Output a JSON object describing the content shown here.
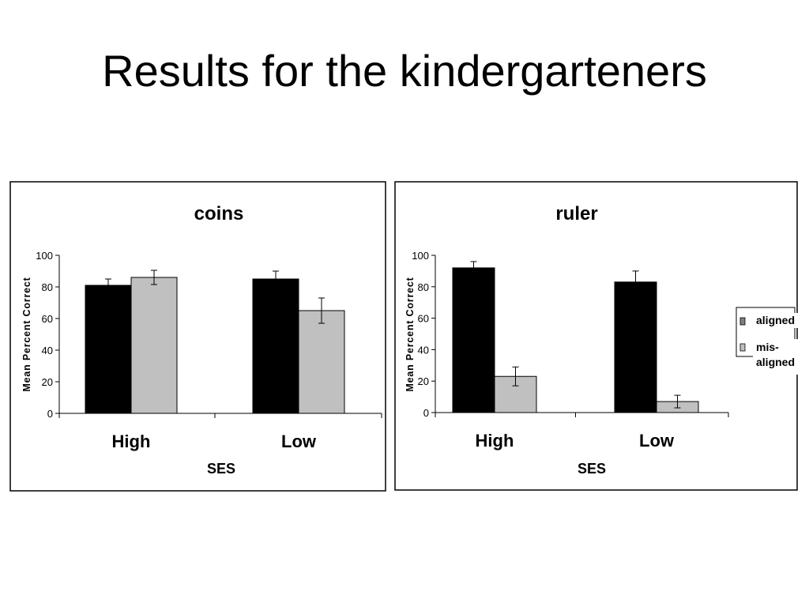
{
  "slide": {
    "title": "Results for the kindergarteners"
  },
  "chart_data": [
    {
      "type": "bar",
      "title": "coins",
      "xlabel": "SES",
      "ylabel": "Mean Percent Correct",
      "ylim": [
        0,
        100
      ],
      "yticks": [
        0,
        20,
        40,
        60,
        80,
        100
      ],
      "categories": [
        "High",
        "Low"
      ],
      "series": [
        {
          "name": "aligned",
          "color": "#000000",
          "values": [
            81,
            85
          ],
          "error": [
            4,
            5
          ]
        },
        {
          "name": "mis-aligned",
          "color": "#c0c0c0",
          "values": [
            86,
            65
          ],
          "error": [
            4.5,
            8
          ]
        }
      ],
      "legend": "none"
    },
    {
      "type": "bar",
      "title": "ruler",
      "xlabel": "SES",
      "ylabel": "Mean Percent Correct",
      "ylim": [
        0,
        100
      ],
      "yticks": [
        0,
        20,
        40,
        60,
        80,
        100
      ],
      "categories": [
        "High",
        "Low"
      ],
      "series": [
        {
          "name": "aligned",
          "color": "#000000",
          "values": [
            92,
            83
          ],
          "error": [
            4,
            7
          ]
        },
        {
          "name": "mis-aligned",
          "color": "#c0c0c0",
          "values": [
            23,
            7
          ],
          "error": [
            6,
            4
          ]
        }
      ],
      "legend": "right",
      "legend_labels": [
        "aligned",
        "mis-\naligned"
      ]
    }
  ]
}
